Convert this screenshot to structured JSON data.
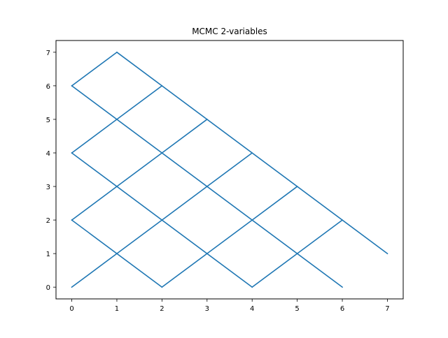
{
  "chart_data": {
    "type": "line",
    "title": "MCMC 2-variables",
    "xlabel": "",
    "ylabel": "",
    "xlim": [
      -0.35,
      7.35
    ],
    "ylim": [
      -0.35,
      7.35
    ],
    "xticks": [
      0,
      1,
      2,
      3,
      4,
      5,
      6,
      7
    ],
    "yticks": [
      0,
      1,
      2,
      3,
      4,
      5,
      6,
      7
    ],
    "grid": false,
    "series": [
      {
        "color": "#1f77b4",
        "segments": [
          [
            [
              0,
              0
            ],
            [
              1,
              1
            ],
            [
              2,
              2
            ],
            [
              3,
              3
            ],
            [
              4,
              4
            ]
          ],
          [
            [
              0,
              2
            ],
            [
              1,
              3
            ],
            [
              2,
              4
            ],
            [
              3,
              5
            ]
          ],
          [
            [
              0,
              4
            ],
            [
              1,
              5
            ],
            [
              2,
              6
            ]
          ],
          [
            [
              0,
              6
            ],
            [
              1,
              7
            ]
          ],
          [
            [
              2,
              0
            ],
            [
              3,
              1
            ],
            [
              4,
              2
            ],
            [
              5,
              3
            ]
          ],
          [
            [
              4,
              0
            ],
            [
              5,
              1
            ],
            [
              6,
              2
            ]
          ],
          [
            [
              1,
              7
            ],
            [
              7,
              1
            ]
          ],
          [
            [
              0,
              6
            ],
            [
              6,
              0
            ]
          ],
          [
            [
              0,
              4
            ],
            [
              4,
              0
            ]
          ],
          [
            [
              0,
              2
            ],
            [
              2,
              0
            ]
          ]
        ]
      }
    ]
  }
}
